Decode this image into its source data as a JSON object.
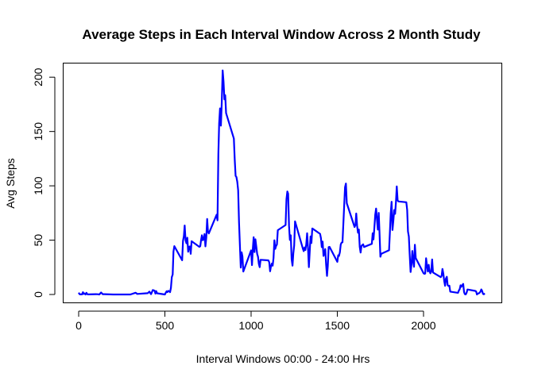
{
  "chart_data": {
    "type": "line",
    "title": "Average Steps in Each Interval Window Across 2 Month Study",
    "xlabel": "Interval Windows 00:00 - 24:00 Hrs",
    "ylabel": "Avg Steps",
    "xlim": [
      0,
      2355
    ],
    "ylim": [
      0,
      206
    ],
    "xticks": [
      0,
      500,
      1000,
      1500,
      2000
    ],
    "yticks": [
      0,
      50,
      100,
      150,
      200
    ],
    "grid": false,
    "legend": "none",
    "colors": {
      "line": "#0000ff",
      "axis": "#000000"
    },
    "series": [
      {
        "points": [
          [
            0,
            1.7
          ],
          [
            5,
            0.3
          ],
          [
            10,
            0.1
          ],
          [
            15,
            0.2
          ],
          [
            20,
            0.1
          ],
          [
            25,
            2.1
          ],
          [
            30,
            0.5
          ],
          [
            35,
            0.9
          ],
          [
            40,
            0
          ],
          [
            45,
            1.5
          ],
          [
            50,
            0.3
          ],
          [
            55,
            0.1
          ],
          [
            100,
            0.3
          ],
          [
            110,
            0.2
          ],
          [
            120,
            0
          ],
          [
            130,
            1.8
          ],
          [
            140,
            0.2
          ],
          [
            150,
            0.3
          ],
          [
            200,
            0
          ],
          [
            230,
            0
          ],
          [
            245,
            0
          ],
          [
            300,
            0
          ],
          [
            330,
            1.6
          ],
          [
            340,
            0.5
          ],
          [
            400,
            1.2
          ],
          [
            410,
            2.6
          ],
          [
            420,
            0.3
          ],
          [
            430,
            4.1
          ],
          [
            440,
            3.5
          ],
          [
            445,
            0.8
          ],
          [
            450,
            3.1
          ],
          [
            455,
            1.1
          ],
          [
            500,
            0
          ],
          [
            505,
            1.6
          ],
          [
            510,
            3
          ],
          [
            515,
            2.2
          ],
          [
            520,
            3.3
          ],
          [
            525,
            3
          ],
          [
            530,
            2.1
          ],
          [
            535,
            6.1
          ],
          [
            540,
            16
          ],
          [
            545,
            18.3
          ],
          [
            550,
            39.5
          ],
          [
            555,
            44.5
          ],
          [
            600,
            31.5
          ],
          [
            605,
            49.3
          ],
          [
            610,
            53.8
          ],
          [
            615,
            63.5
          ],
          [
            620,
            50
          ],
          [
            625,
            47.1
          ],
          [
            630,
            52.2
          ],
          [
            635,
            39.3
          ],
          [
            640,
            44
          ],
          [
            645,
            44.2
          ],
          [
            650,
            37.4
          ],
          [
            655,
            49
          ],
          [
            700,
            43.8
          ],
          [
            705,
            44.4
          ],
          [
            710,
            50.5
          ],
          [
            715,
            54.5
          ],
          [
            720,
            49.9
          ],
          [
            725,
            51
          ],
          [
            730,
            55.7
          ],
          [
            735,
            44.3
          ],
          [
            740,
            52.3
          ],
          [
            745,
            69.5
          ],
          [
            750,
            57.8
          ],
          [
            755,
            56.2
          ],
          [
            800,
            73.4
          ],
          [
            805,
            68.2
          ],
          [
            810,
            129.4
          ],
          [
            815,
            157.5
          ],
          [
            820,
            171.2
          ],
          [
            825,
            155.4
          ],
          [
            830,
            177.3
          ],
          [
            835,
            206.2
          ],
          [
            840,
            195.9
          ],
          [
            845,
            179.6
          ],
          [
            850,
            183.4
          ],
          [
            855,
            167
          ],
          [
            900,
            143.5
          ],
          [
            905,
            124
          ],
          [
            910,
            109.1
          ],
          [
            915,
            108.1
          ],
          [
            920,
            103.7
          ],
          [
            925,
            95.9
          ],
          [
            930,
            66.2
          ],
          [
            935,
            45.2
          ],
          [
            940,
            24.8
          ],
          [
            945,
            38.8
          ],
          [
            950,
            35
          ],
          [
            955,
            21.1
          ],
          [
            1000,
            40.6
          ],
          [
            1005,
            27
          ],
          [
            1010,
            42.4
          ],
          [
            1015,
            52.7
          ],
          [
            1020,
            38.9
          ],
          [
            1025,
            50.8
          ],
          [
            1030,
            44.3
          ],
          [
            1035,
            37.4
          ],
          [
            1040,
            34.7
          ],
          [
            1045,
            28.3
          ],
          [
            1050,
            25.1
          ],
          [
            1055,
            31.9
          ],
          [
            1100,
            31.4
          ],
          [
            1105,
            29.7
          ],
          [
            1110,
            21.3
          ],
          [
            1115,
            25.5
          ],
          [
            1120,
            28.4
          ],
          [
            1125,
            26.5
          ],
          [
            1130,
            33.4
          ],
          [
            1135,
            49.9
          ],
          [
            1140,
            42
          ],
          [
            1145,
            44.6
          ],
          [
            1150,
            46
          ],
          [
            1155,
            59.2
          ],
          [
            1200,
            63.9
          ],
          [
            1205,
            87.7
          ],
          [
            1210,
            94.8
          ],
          [
            1215,
            92.8
          ],
          [
            1220,
            63.4
          ],
          [
            1225,
            50.2
          ],
          [
            1230,
            54.5
          ],
          [
            1235,
            32.4
          ],
          [
            1240,
            26.5
          ],
          [
            1245,
            37.7
          ],
          [
            1250,
            45.1
          ],
          [
            1255,
            67.3
          ],
          [
            1300,
            42.3
          ],
          [
            1305,
            39.9
          ],
          [
            1310,
            43.3
          ],
          [
            1315,
            40.9
          ],
          [
            1320,
            46.2
          ],
          [
            1325,
            56.4
          ],
          [
            1330,
            42.8
          ],
          [
            1335,
            25.1
          ],
          [
            1340,
            39.9
          ],
          [
            1345,
            53.5
          ],
          [
            1350,
            47.3
          ],
          [
            1355,
            60.8
          ],
          [
            1400,
            55.8
          ],
          [
            1405,
            51.8
          ],
          [
            1410,
            43.6
          ],
          [
            1415,
            48.7
          ],
          [
            1420,
            35.5
          ],
          [
            1425,
            37.5
          ],
          [
            1430,
            41.8
          ],
          [
            1435,
            27.5
          ],
          [
            1440,
            17.1
          ],
          [
            1445,
            26.1
          ],
          [
            1450,
            43.6
          ],
          [
            1455,
            43.8
          ],
          [
            1500,
            30
          ],
          [
            1505,
            36.1
          ],
          [
            1510,
            35.5
          ],
          [
            1515,
            38.8
          ],
          [
            1520,
            46
          ],
          [
            1525,
            47.8
          ],
          [
            1530,
            48.1
          ],
          [
            1535,
            65.3
          ],
          [
            1540,
            82.9
          ],
          [
            1545,
            98.7
          ],
          [
            1550,
            102.1
          ],
          [
            1555,
            84
          ],
          [
            1600,
            62.1
          ],
          [
            1605,
            64.1
          ],
          [
            1610,
            74.5
          ],
          [
            1615,
            63.2
          ],
          [
            1620,
            56.9
          ],
          [
            1625,
            59.8
          ],
          [
            1630,
            43.9
          ],
          [
            1635,
            38.6
          ],
          [
            1640,
            44.7
          ],
          [
            1645,
            45.5
          ],
          [
            1650,
            46.2
          ],
          [
            1655,
            43.7
          ],
          [
            1700,
            46.6
          ],
          [
            1705,
            56.3
          ],
          [
            1710,
            50.7
          ],
          [
            1715,
            61.2
          ],
          [
            1720,
            73.4
          ],
          [
            1725,
            79.1
          ],
          [
            1730,
            68.9
          ],
          [
            1735,
            59.7
          ],
          [
            1740,
            75.1
          ],
          [
            1745,
            56.5
          ],
          [
            1750,
            34.8
          ],
          [
            1755,
            37.5
          ],
          [
            1800,
            40.7
          ],
          [
            1805,
            58
          ],
          [
            1810,
            74.7
          ],
          [
            1815,
            85.3
          ],
          [
            1820,
            59.3
          ],
          [
            1825,
            67.8
          ],
          [
            1830,
            77.7
          ],
          [
            1835,
            74.2
          ],
          [
            1840,
            85.3
          ],
          [
            1845,
            99.5
          ],
          [
            1850,
            86.6
          ],
          [
            1855,
            85.6
          ],
          [
            1900,
            84.9
          ],
          [
            1905,
            77.8
          ],
          [
            1910,
            58
          ],
          [
            1915,
            53.4
          ],
          [
            1920,
            36.3
          ],
          [
            1925,
            20.7
          ],
          [
            1930,
            27.4
          ],
          [
            1935,
            40
          ],
          [
            1940,
            30.2
          ],
          [
            1945,
            25.5
          ],
          [
            1950,
            45.7
          ],
          [
            1955,
            33.5
          ],
          [
            2000,
            19.6
          ],
          [
            2005,
            19
          ],
          [
            2010,
            19.3
          ],
          [
            2015,
            33.3
          ],
          [
            2020,
            26.8
          ],
          [
            2025,
            21.2
          ],
          [
            2030,
            27.3
          ],
          [
            2035,
            21.3
          ],
          [
            2040,
            19.5
          ],
          [
            2045,
            21.3
          ],
          [
            2050,
            32.3
          ],
          [
            2055,
            20.2
          ],
          [
            2100,
            15.9
          ],
          [
            2105,
            17.2
          ],
          [
            2110,
            23.5
          ],
          [
            2115,
            19.2
          ],
          [
            2120,
            12.5
          ],
          [
            2125,
            8
          ],
          [
            2130,
            14.7
          ],
          [
            2135,
            16.3
          ],
          [
            2140,
            8.7
          ],
          [
            2145,
            7.8
          ],
          [
            2150,
            8.1
          ],
          [
            2155,
            2.6
          ],
          [
            2200,
            1.5
          ],
          [
            2205,
            3.7
          ],
          [
            2210,
            4.8
          ],
          [
            2215,
            8.5
          ],
          [
            2220,
            7.1
          ],
          [
            2225,
            8.7
          ],
          [
            2230,
            9.8
          ],
          [
            2235,
            2.2
          ],
          [
            2240,
            0.3
          ],
          [
            2245,
            0.1
          ],
          [
            2250,
            1.6
          ],
          [
            2255,
            4.6
          ],
          [
            2300,
            3.3
          ],
          [
            2305,
            2.8
          ],
          [
            2310,
            0
          ],
          [
            2315,
            0.8
          ],
          [
            2320,
            1
          ],
          [
            2325,
            1.6
          ],
          [
            2330,
            2.6
          ],
          [
            2335,
            4.7
          ],
          [
            2340,
            3.3
          ],
          [
            2345,
            0.6
          ],
          [
            2350,
            0.2
          ],
          [
            2355,
            1.1
          ]
        ]
      }
    ]
  }
}
